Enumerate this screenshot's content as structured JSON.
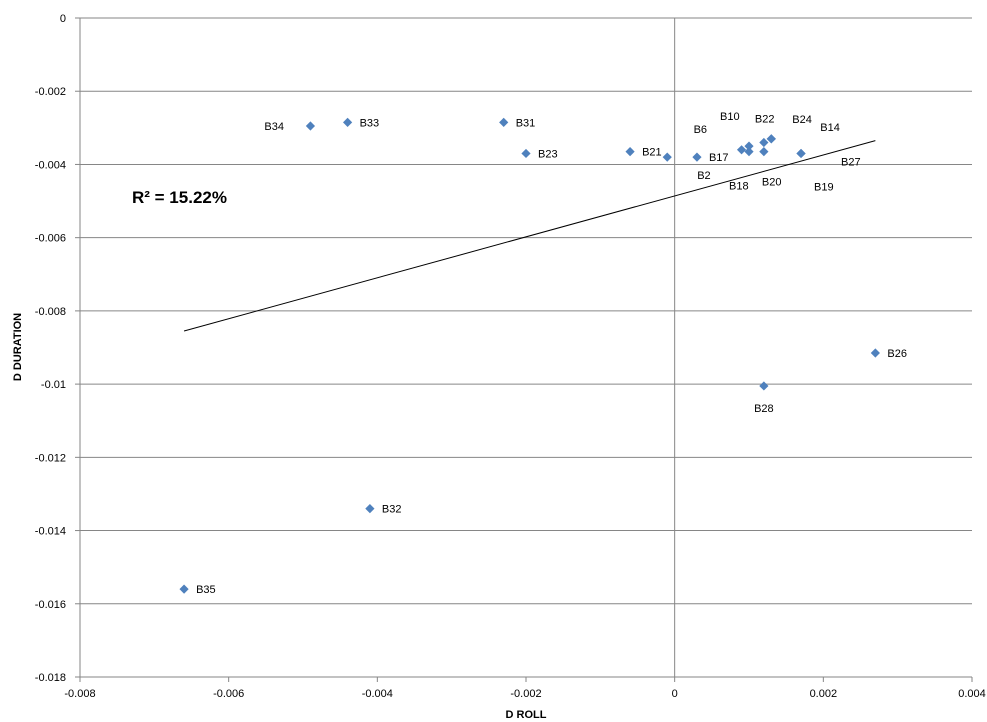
{
  "chart_data": {
    "type": "scatter",
    "xlabel": "D ROLL",
    "ylabel": "D DURATION",
    "xlim": [
      -0.008,
      0.004
    ],
    "ylim": [
      -0.018,
      0
    ],
    "x_ticks": [
      -0.008,
      -0.006,
      -0.004,
      -0.002,
      0,
      0.002,
      0.004
    ],
    "y_ticks": [
      0,
      -0.002,
      -0.004,
      -0.006,
      -0.008,
      -0.01,
      -0.012,
      -0.014,
      -0.016,
      -0.018
    ],
    "x_tick_labels": [
      "-0.008",
      "-0.006",
      "-0.004",
      "-0.002",
      "0",
      "0.002",
      "0.004"
    ],
    "y_tick_labels": [
      "0",
      "-0.002",
      "-0.004",
      "-0.006",
      "-0.008",
      "-0.01",
      "-0.012",
      "-0.014",
      "-0.016",
      "-0.018"
    ],
    "grid": "horizontal",
    "annotation": "R² = 15.22%",
    "marker_color": "#4F81BD",
    "trendline": {
      "x": [
        -0.0066,
        0.0027
      ],
      "y": [
        -0.00855,
        -0.00335
      ]
    },
    "points": [
      {
        "label": "B34",
        "x": -0.0049,
        "y": -0.00295
      },
      {
        "label": "B33",
        "x": -0.0044,
        "y": -0.00285
      },
      {
        "label": "B31",
        "x": -0.0023,
        "y": -0.00285
      },
      {
        "label": "B23",
        "x": -0.002,
        "y": -0.0037
      },
      {
        "label": "B21",
        "x": -0.0006,
        "y": -0.00365
      },
      {
        "label": "B2",
        "x": -0.0001,
        "y": -0.0038
      },
      {
        "label": "B17",
        "x": 0.0003,
        "y": -0.0038
      },
      {
        "label": "B6",
        "x": 0.0009,
        "y": -0.0036
      },
      {
        "label": "B18",
        "x": 0.001,
        "y": -0.00365
      },
      {
        "label": "B10",
        "x": 0.001,
        "y": -0.0035
      },
      {
        "label": "B22",
        "x": 0.0012,
        "y": -0.0034
      },
      {
        "label": "B20",
        "x": 0.0012,
        "y": -0.00365
      },
      {
        "label": "B24",
        "x": 0.0013,
        "y": -0.0033
      },
      {
        "label": "B14",
        "x": 0.0013,
        "y": -0.0033
      },
      {
        "label": "B27",
        "x": 0.0017,
        "y": -0.0037
      },
      {
        "label": "B19",
        "x": 0.0017,
        "y": -0.0037
      },
      {
        "label": "B26",
        "x": 0.0027,
        "y": -0.00915
      },
      {
        "label": "B28",
        "x": 0.0012,
        "y": -0.01005
      },
      {
        "label": "B32",
        "x": -0.0041,
        "y": -0.0134
      },
      {
        "label": "B35",
        "x": -0.0066,
        "y": -0.0156
      }
    ]
  }
}
